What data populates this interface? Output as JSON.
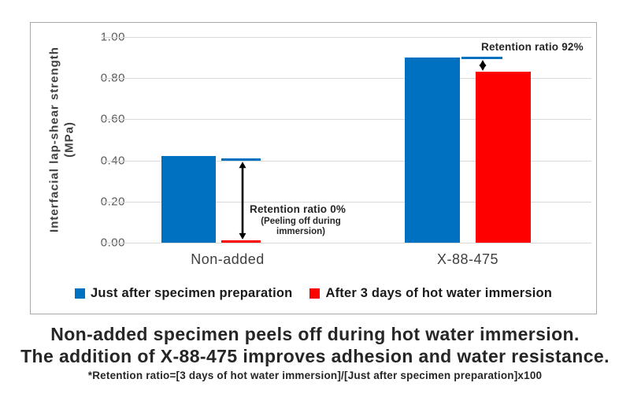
{
  "chart_data": {
    "type": "bar",
    "title": "",
    "ylabel_line1": "Interfacial lap-shear strength",
    "ylabel_line2": "(MPa)",
    "ylim": [
      0,
      1.0
    ],
    "ytick_values": [
      1.0,
      0.8,
      0.6,
      0.4,
      0.2,
      0.0
    ],
    "grid": true,
    "legend_position": "bottom-inside",
    "categories": [
      "Non-added",
      "X-88-475"
    ],
    "series": [
      {
        "name": "Just after specimen preparation",
        "color": "#0070C0",
        "values": [
          0.42,
          0.9
        ]
      },
      {
        "name": "After 3 days of hot water immersion",
        "color": "#FF0000",
        "values": [
          0.01,
          0.83
        ]
      }
    ],
    "reference_lines": [
      {
        "category": "Non-added",
        "value": 0.405,
        "color": "#0070C0"
      },
      {
        "category": "X-88-475",
        "value": 0.9,
        "color": "#0070C0"
      }
    ],
    "annotations": [
      {
        "text": "Retention ratio 0%",
        "sub_line1": "(Peeling off during",
        "sub_line2": "immersion)"
      },
      {
        "text": "Retention ratio 92%"
      }
    ],
    "arrow_color": "#000000"
  },
  "caption": {
    "line1": "Non-added specimen peels off during hot water immersion.",
    "line2": "The addition of X-88-475 improves adhesion and water resistance.",
    "footnote": "*Retention ratio=[3 days of hot water immersion]/[Just after specimen preparation]x100"
  }
}
